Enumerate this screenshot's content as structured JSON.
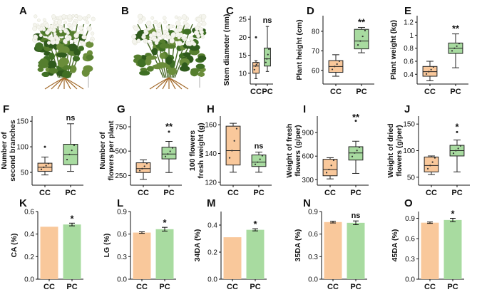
{
  "colors": {
    "cc": "#f9c89b",
    "pc": "#a8dba0",
    "ccEdge": "#222222",
    "pcEdge": "#222222",
    "point": "#333333"
  },
  "chart_data": [
    {
      "id": "C",
      "type": "box",
      "ylabel": [
        "Stem diameter (mm)"
      ],
      "ylim": [
        7,
        26
      ],
      "yticks": [
        10,
        15,
        20,
        25
      ],
      "significance": "ns",
      "categories": [
        "CC",
        "PC"
      ],
      "boxes": [
        {
          "name": "CC",
          "min": 8.5,
          "q1": 10,
          "median": 12,
          "q3": 13,
          "max": 13.5,
          "outliers": [
            20
          ]
        },
        {
          "name": "PC",
          "min": 10.5,
          "q1": 12,
          "median": 14,
          "q3": 17,
          "max": 23,
          "outliers": []
        }
      ]
    },
    {
      "id": "D",
      "type": "box",
      "ylabel": [
        "Plant height (cm)"
      ],
      "ylim": [
        53,
        88
      ],
      "yticks": [
        60,
        70,
        80
      ],
      "significance": "**",
      "categories": [
        "CC",
        "PC"
      ],
      "boxes": [
        {
          "name": "CC",
          "min": 57,
          "q1": 59,
          "median": 62,
          "q3": 65,
          "max": 68,
          "outliers": []
        },
        {
          "name": "PC",
          "min": 69,
          "q1": 71,
          "median": 75,
          "q3": 81,
          "max": 82,
          "outliers": []
        }
      ]
    },
    {
      "id": "E",
      "type": "box",
      "ylabel": [
        "Plant weight (kg)"
      ],
      "ylim": [
        0.25,
        1.3
      ],
      "yticks": [
        0.4,
        0.6,
        0.8,
        1.0,
        1.2
      ],
      "significance": "**",
      "categories": [
        "CC",
        "PC"
      ],
      "boxes": [
        {
          "name": "CC",
          "min": 0.3,
          "q1": 0.37,
          "median": 0.44,
          "q3": 0.52,
          "max": 0.6,
          "outliers": []
        },
        {
          "name": "PC",
          "min": 0.5,
          "q1": 0.72,
          "median": 0.8,
          "q3": 0.88,
          "max": 1.02,
          "outliers": []
        }
      ]
    },
    {
      "id": "F",
      "type": "box",
      "ylabel": [
        "Number of",
        "second branches"
      ],
      "ylim": [
        25,
        160
      ],
      "yticks": [
        50,
        100,
        150
      ],
      "significance": "ns",
      "categories": [
        "CC",
        "PC"
      ],
      "boxes": [
        {
          "name": "CC",
          "min": 45,
          "q1": 52,
          "median": 60,
          "q3": 68,
          "max": 80,
          "outliers": [
            100
          ]
        },
        {
          "name": "PC",
          "min": 52,
          "q1": 65,
          "median": 85,
          "q3": 105,
          "max": 145,
          "outliers": []
        }
      ]
    },
    {
      "id": "G",
      "type": "box",
      "ylabel": [
        "Number of",
        "flowers per plant"
      ],
      "ylim": [
        150,
        860
      ],
      "yticks": [
        250,
        500,
        750
      ],
      "significance": "**",
      "categories": [
        "CC",
        "PC"
      ],
      "boxes": [
        {
          "name": "CC",
          "min": 210,
          "q1": 280,
          "median": 320,
          "q3": 380,
          "max": 410,
          "outliers": []
        },
        {
          "name": "PC",
          "min": 280,
          "q1": 420,
          "median": 470,
          "q3": 540,
          "max": 600,
          "outliers": [
            700
          ]
        }
      ]
    },
    {
      "id": "H",
      "type": "box",
      "ylabel": [
        "100 flowers",
        "fresh weight (g)"
      ],
      "ylim": [
        118,
        166
      ],
      "yticks": [
        120,
        140,
        160
      ],
      "significance": "ns",
      "categories": [
        "CC",
        "PC"
      ],
      "boxes": [
        {
          "name": "CC",
          "min": 127,
          "q1": 132,
          "median": 142,
          "q3": 159,
          "max": 161,
          "outliers": []
        },
        {
          "name": "PC",
          "min": 127,
          "q1": 131,
          "median": 134,
          "q3": 139,
          "max": 141,
          "outliers": []
        }
      ]
    },
    {
      "id": "I",
      "type": "box",
      "ylabel": [
        "Weight of fresh",
        "flowers (g/per)"
      ],
      "ylim": [
        230,
        1110
      ],
      "yticks": [
        300,
        600,
        900
      ],
      "significance": "**",
      "categories": [
        "CC",
        "PC"
      ],
      "boxes": [
        {
          "name": "CC",
          "min": 310,
          "q1": 350,
          "median": 430,
          "q3": 560,
          "max": 580,
          "outliers": []
        },
        {
          "name": "PC",
          "min": 380,
          "q1": 550,
          "median": 640,
          "q3": 720,
          "max": 790,
          "outliers": [
            1050
          ]
        }
      ]
    },
    {
      "id": "J",
      "type": "box",
      "ylabel": [
        "Weight of dried",
        "flowers (g/per)"
      ],
      "ylim": [
        35,
        165
      ],
      "yticks": [
        50,
        100,
        150
      ],
      "significance": "*",
      "categories": [
        "CC",
        "PC"
      ],
      "boxes": [
        {
          "name": "CC",
          "min": 55,
          "q1": 60,
          "median": 72,
          "q3": 88,
          "max": 90,
          "outliers": []
        },
        {
          "name": "PC",
          "min": 60,
          "q1": 90,
          "median": 100,
          "q3": 110,
          "max": 120,
          "outliers": [
            135
          ]
        }
      ]
    },
    {
      "id": "K",
      "type": "bar",
      "ylabel": [
        "CA (%)"
      ],
      "ylim": [
        0,
        0.6
      ],
      "yticks": [
        0.0,
        0.2,
        0.4,
        0.6
      ],
      "tickFormat": "0.0",
      "significance": "*",
      "categories": [
        "CC",
        "PC"
      ],
      "values": [
        0.465,
        0.485
      ],
      "errors": [
        0,
        0.012
      ]
    },
    {
      "id": "L",
      "type": "bar",
      "ylabel": [
        "LG (%)"
      ],
      "ylim": [
        0,
        0.9
      ],
      "yticks": [
        0.0,
        0.3,
        0.6,
        0.9
      ],
      "tickFormat": "0.0",
      "significance": "*",
      "categories": [
        "CC",
        "PC"
      ],
      "values": [
        0.62,
        0.665
      ],
      "errors": [
        0.01,
        0.025
      ]
    },
    {
      "id": "M",
      "type": "bar",
      "ylabel": [
        "34DA (%)"
      ],
      "ylim": [
        0,
        0.5
      ],
      "yticks": [
        0.0,
        0.2,
        0.4
      ],
      "tickFormat": "0.0",
      "significance": "*",
      "categories": [
        "CC",
        "PC"
      ],
      "values": [
        0.31,
        0.365
      ],
      "errors": [
        0,
        0.008
      ]
    },
    {
      "id": "N",
      "type": "bar",
      "ylabel": [
        "35DA (%)"
      ],
      "ylim": [
        0,
        0.9
      ],
      "yticks": [
        0.0,
        0.3,
        0.6,
        0.9
      ],
      "tickFormat": "0.0",
      "significance": "ns",
      "categories": [
        "CC",
        "PC"
      ],
      "values": [
        0.76,
        0.75
      ],
      "errors": [
        0.012,
        0.025
      ]
    },
    {
      "id": "O",
      "type": "bar",
      "ylabel": [
        "45DA (%)"
      ],
      "ylim": [
        0,
        1.0
      ],
      "yticks": [
        0.0,
        0.3,
        0.6,
        0.9
      ],
      "tickFormat": "0.0",
      "significance": "*",
      "categories": [
        "CC",
        "PC"
      ],
      "values": [
        0.835,
        0.875
      ],
      "errors": [
        0.01,
        0.025
      ]
    }
  ],
  "photos": [
    {
      "id": "A",
      "name": "photo-cc-plant"
    },
    {
      "id": "B",
      "name": "photo-pc-plant"
    }
  ]
}
